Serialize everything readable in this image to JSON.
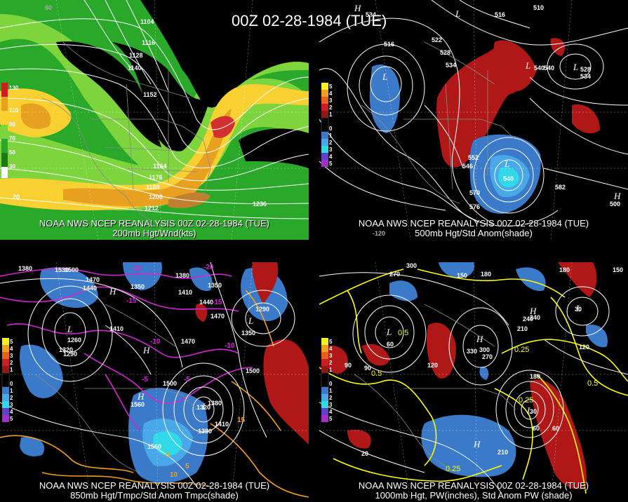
{
  "header": {
    "date_title": "00Z 02-28-1984 (TUE)"
  },
  "panels": [
    {
      "caption_line1": "NOAA NWS NCEP REANALYSIS 00Z 02-28-1984 (TUE)",
      "caption_line2": "200mb Hgt/Wnd(kts)",
      "contour_labels": [
        "1104",
        "1116",
        "1128",
        "1140",
        "1152",
        "1164",
        "1176",
        "1188",
        "1200",
        "1212",
        "1236"
      ],
      "legend_labels": [
        "130",
        "110",
        "90",
        "70",
        "50",
        "30"
      ],
      "other_labels": [
        "60",
        "20"
      ]
    },
    {
      "caption_line1": "NOAA NWS NCEP REANALYSIS 00Z 02-28-1984 (TUE)",
      "caption_line2": "500mb Hgt/Std Anom(shade)",
      "contour_labels": [
        "534",
        "516",
        "510",
        "522",
        "528",
        "534",
        "540",
        "516",
        "552",
        "546",
        "540",
        "570",
        "576",
        "582",
        "528",
        "534",
        "540"
      ],
      "legend_labels": [
        "5",
        "4",
        "3",
        "2",
        "1",
        "0",
        "1",
        "2",
        "3",
        "4",
        "5"
      ],
      "other_labels": [
        "H",
        "L",
        "L",
        "L",
        "L",
        "L",
        "H",
        "-120",
        "500"
      ]
    },
    {
      "caption_line1": "NOAA NWS NCEP REANALYSIS 00Z 02-28-1984 (TUE)",
      "caption_line2": "850mb Hgt/Tmpc/Std Anom Tmpc(shade)",
      "contour_labels": [
        "1530",
        "1500",
        "1470",
        "1440",
        "1380",
        "1350",
        "1320",
        "1290",
        "1260",
        "1410",
        "1470",
        "1500",
        "1440",
        "1470",
        "1380",
        "1350",
        "1290",
        "1350",
        "1410",
        "1380",
        "1320",
        "1380",
        "1410",
        "1500",
        "1560",
        "1560"
      ],
      "legend_labels": [
        "5",
        "4",
        "3",
        "2",
        "1",
        "0",
        "1",
        "2",
        "3",
        "4",
        "5"
      ],
      "other_labels": [
        "H",
        "L",
        "L",
        "H",
        "H",
        "L",
        "-20",
        "-15",
        "-10",
        "-5",
        "-20",
        "-15",
        "-10",
        "-5",
        "10",
        "5",
        "0",
        "15"
      ]
    },
    {
      "caption_line1": "NOAA NWS NCEP REANALYSIS 00Z 02-28-1984 (TUE)",
      "caption_line2": "1000mb Hgt, PW(inches), Std Anom PW (shade)",
      "contour_labels": [
        "300",
        "270",
        "180",
        "150",
        "240",
        "210",
        "330",
        "300",
        "270",
        "180",
        "150",
        "120",
        "90",
        "60",
        "30",
        "60",
        "90",
        "120",
        "180",
        "210",
        "240"
      ],
      "legend_labels": [
        "5",
        "4",
        "3",
        "2",
        "1",
        "0",
        "1",
        "2",
        "3",
        "4",
        "5"
      ],
      "other_labels": [
        "H",
        "L",
        "H",
        "H",
        "L",
        "L",
        "0.5",
        "0.25",
        "0.5",
        "0.25",
        "0.5",
        "0.25",
        "30",
        "60",
        "20"
      ]
    }
  ]
}
